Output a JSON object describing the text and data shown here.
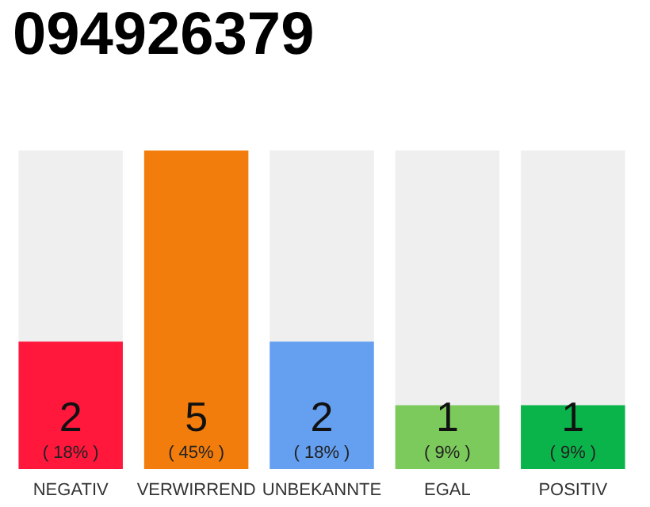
{
  "chart_data": {
    "type": "bar",
    "title": "094926379",
    "categories": [
      "NEGATIV",
      "VERWIRREND",
      "UNBEKANNTE",
      "EGAL",
      "POSITIV"
    ],
    "values": [
      2,
      5,
      2,
      1,
      1
    ],
    "colors": [
      "#ff173c",
      "#f27d0c",
      "#659ff0",
      "#7cca5c",
      "#0ab44a"
    ],
    "value_labels": [
      "2\n( 18% )",
      "5\n( 45% )",
      "2\n( 18% )",
      "1\n( 9% )",
      "1\n( 9% )"
    ],
    "ylim": [
      0,
      5
    ],
    "tick_labels": "x"
  }
}
